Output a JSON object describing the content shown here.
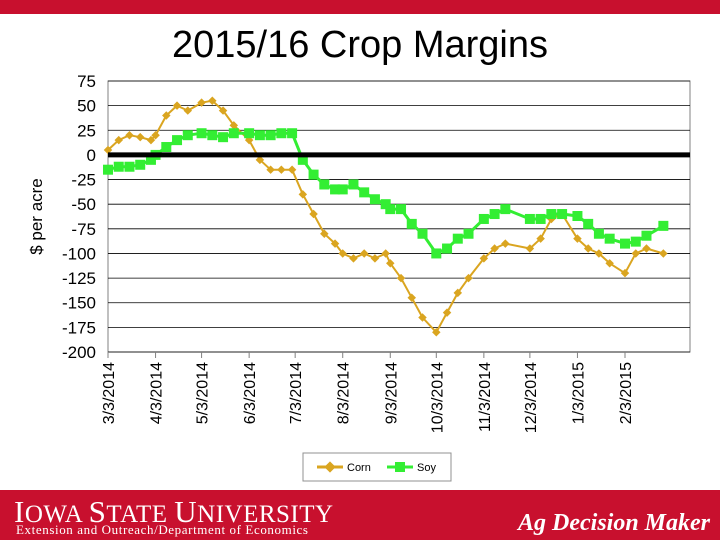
{
  "header": {
    "title": "2015/16 Crop Margins"
  },
  "footer": {
    "university": "Iowa State University",
    "subtitle": "Extension and Outreach/Department of Economics",
    "brand": "Ag Decision Maker"
  },
  "colors": {
    "corn": "#daa520",
    "soy": "#33ee33",
    "zero_line": "#000000",
    "brand_red": "#c8102e"
  },
  "chart_data": {
    "type": "line",
    "title": "2015/16 Crop Margins",
    "xlabel": "",
    "ylabel": "$ per acre",
    "ylim": [
      -200,
      75
    ],
    "yticks": [
      75,
      50,
      25,
      0,
      -25,
      -50,
      -75,
      -100,
      -125,
      -150,
      -175,
      -200
    ],
    "x_tick_labels": [
      "3/3/2014",
      "4/3/2014",
      "5/3/2014",
      "6/3/2014",
      "7/3/2014",
      "8/3/2014",
      "9/3/2014",
      "10/3/2014",
      "11/3/2014",
      "12/3/2014",
      "1/3/2015",
      "2/3/2015"
    ],
    "grid": true,
    "legend": "bottom",
    "series": [
      {
        "name": "Corn",
        "points": [
          [
            "3/3/2014",
            5
          ],
          [
            "3/10/2014",
            15
          ],
          [
            "3/17/2014",
            20
          ],
          [
            "3/24/2014",
            18
          ],
          [
            "3/31/2014",
            15
          ],
          [
            "4/3/2014",
            20
          ],
          [
            "4/10/2014",
            40
          ],
          [
            "4/17/2014",
            50
          ],
          [
            "4/24/2014",
            45
          ],
          [
            "5/3/2014",
            53
          ],
          [
            "5/10/2014",
            55
          ],
          [
            "5/17/2014",
            45
          ],
          [
            "5/24/2014",
            30
          ],
          [
            "6/3/2014",
            15
          ],
          [
            "6/10/2014",
            -5
          ],
          [
            "6/17/2014",
            -15
          ],
          [
            "6/24/2014",
            -15
          ],
          [
            "7/1/2014",
            -15
          ],
          [
            "7/8/2014",
            -40
          ],
          [
            "7/15/2014",
            -60
          ],
          [
            "7/22/2014",
            -80
          ],
          [
            "7/29/2014",
            -90
          ],
          [
            "8/3/2014",
            -100
          ],
          [
            "8/10/2014",
            -105
          ],
          [
            "8/17/2014",
            -100
          ],
          [
            "8/24/2014",
            -105
          ],
          [
            "8/31/2014",
            -100
          ],
          [
            "9/3/2014",
            -110
          ],
          [
            "9/10/2014",
            -125
          ],
          [
            "9/17/2014",
            -145
          ],
          [
            "9/24/2014",
            -165
          ],
          [
            "10/3/2014",
            -180
          ],
          [
            "10/10/2014",
            -160
          ],
          [
            "10/17/2014",
            -140
          ],
          [
            "10/24/2014",
            -125
          ],
          [
            "11/3/2014",
            -105
          ],
          [
            "11/10/2014",
            -95
          ],
          [
            "11/17/2014",
            -90
          ],
          [
            "12/3/2014",
            -95
          ],
          [
            "12/10/2014",
            -85
          ],
          [
            "12/17/2014",
            -65
          ],
          [
            "12/24/2014",
            -60
          ],
          [
            "1/3/2015",
            -85
          ],
          [
            "1/10/2015",
            -95
          ],
          [
            "1/17/2015",
            -100
          ],
          [
            "1/24/2015",
            -110
          ],
          [
            "2/3/2015",
            -120
          ],
          [
            "2/10/2015",
            -100
          ],
          [
            "2/17/2015",
            -95
          ],
          [
            "2/28/2015",
            -100
          ]
        ]
      },
      {
        "name": "Soy",
        "points": [
          [
            "3/3/2014",
            -15
          ],
          [
            "3/10/2014",
            -12
          ],
          [
            "3/17/2014",
            -12
          ],
          [
            "3/24/2014",
            -10
          ],
          [
            "3/31/2014",
            -5
          ],
          [
            "4/3/2014",
            0
          ],
          [
            "4/10/2014",
            8
          ],
          [
            "4/17/2014",
            15
          ],
          [
            "4/24/2014",
            20
          ],
          [
            "5/3/2014",
            22
          ],
          [
            "5/10/2014",
            20
          ],
          [
            "5/17/2014",
            18
          ],
          [
            "5/24/2014",
            22
          ],
          [
            "6/3/2014",
            22
          ],
          [
            "6/10/2014",
            20
          ],
          [
            "6/17/2014",
            20
          ],
          [
            "6/24/2014",
            22
          ],
          [
            "7/1/2014",
            22
          ],
          [
            "7/8/2014",
            -5
          ],
          [
            "7/15/2014",
            -20
          ],
          [
            "7/22/2014",
            -30
          ],
          [
            "7/29/2014",
            -35
          ],
          [
            "8/3/2014",
            -35
          ],
          [
            "8/10/2014",
            -30
          ],
          [
            "8/17/2014",
            -38
          ],
          [
            "8/24/2014",
            -45
          ],
          [
            "8/31/2014",
            -50
          ],
          [
            "9/3/2014",
            -55
          ],
          [
            "9/10/2014",
            -55
          ],
          [
            "9/17/2014",
            -70
          ],
          [
            "9/24/2014",
            -80
          ],
          [
            "10/3/2014",
            -100
          ],
          [
            "10/10/2014",
            -95
          ],
          [
            "10/17/2014",
            -85
          ],
          [
            "10/24/2014",
            -80
          ],
          [
            "11/3/2014",
            -65
          ],
          [
            "11/10/2014",
            -60
          ],
          [
            "11/17/2014",
            -55
          ],
          [
            "12/3/2014",
            -65
          ],
          [
            "12/10/2014",
            -65
          ],
          [
            "12/17/2014",
            -60
          ],
          [
            "12/24/2014",
            -60
          ],
          [
            "1/3/2015",
            -62
          ],
          [
            "1/10/2015",
            -70
          ],
          [
            "1/17/2015",
            -80
          ],
          [
            "1/24/2015",
            -85
          ],
          [
            "2/3/2015",
            -90
          ],
          [
            "2/10/2015",
            -88
          ],
          [
            "2/17/2015",
            -82
          ],
          [
            "2/28/2015",
            -72
          ]
        ]
      }
    ]
  }
}
